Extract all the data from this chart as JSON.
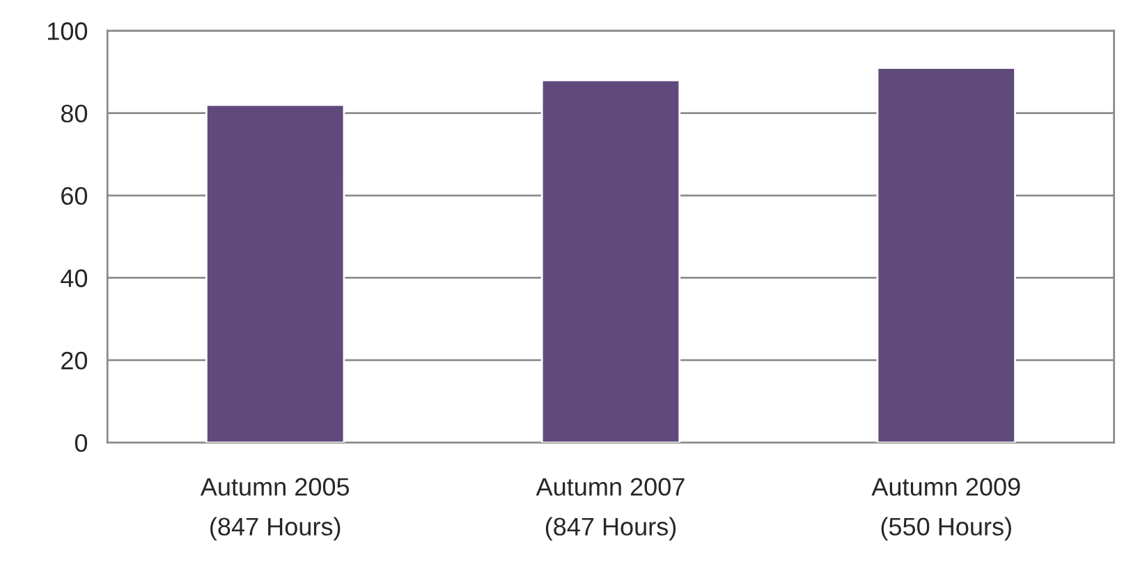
{
  "chart_data": {
    "type": "bar",
    "categories": [
      "Autumn 2005\n(847 Hours)",
      "Autumn 2007\n(847 Hours)",
      "Autumn 2009\n(550 Hours)"
    ],
    "values": [
      82,
      88,
      91
    ],
    "color": "#604a7b",
    "ylim": [
      0,
      100
    ],
    "yticks": [
      0,
      20,
      40,
      60,
      80,
      100
    ],
    "grid": "y",
    "legend": false
  }
}
